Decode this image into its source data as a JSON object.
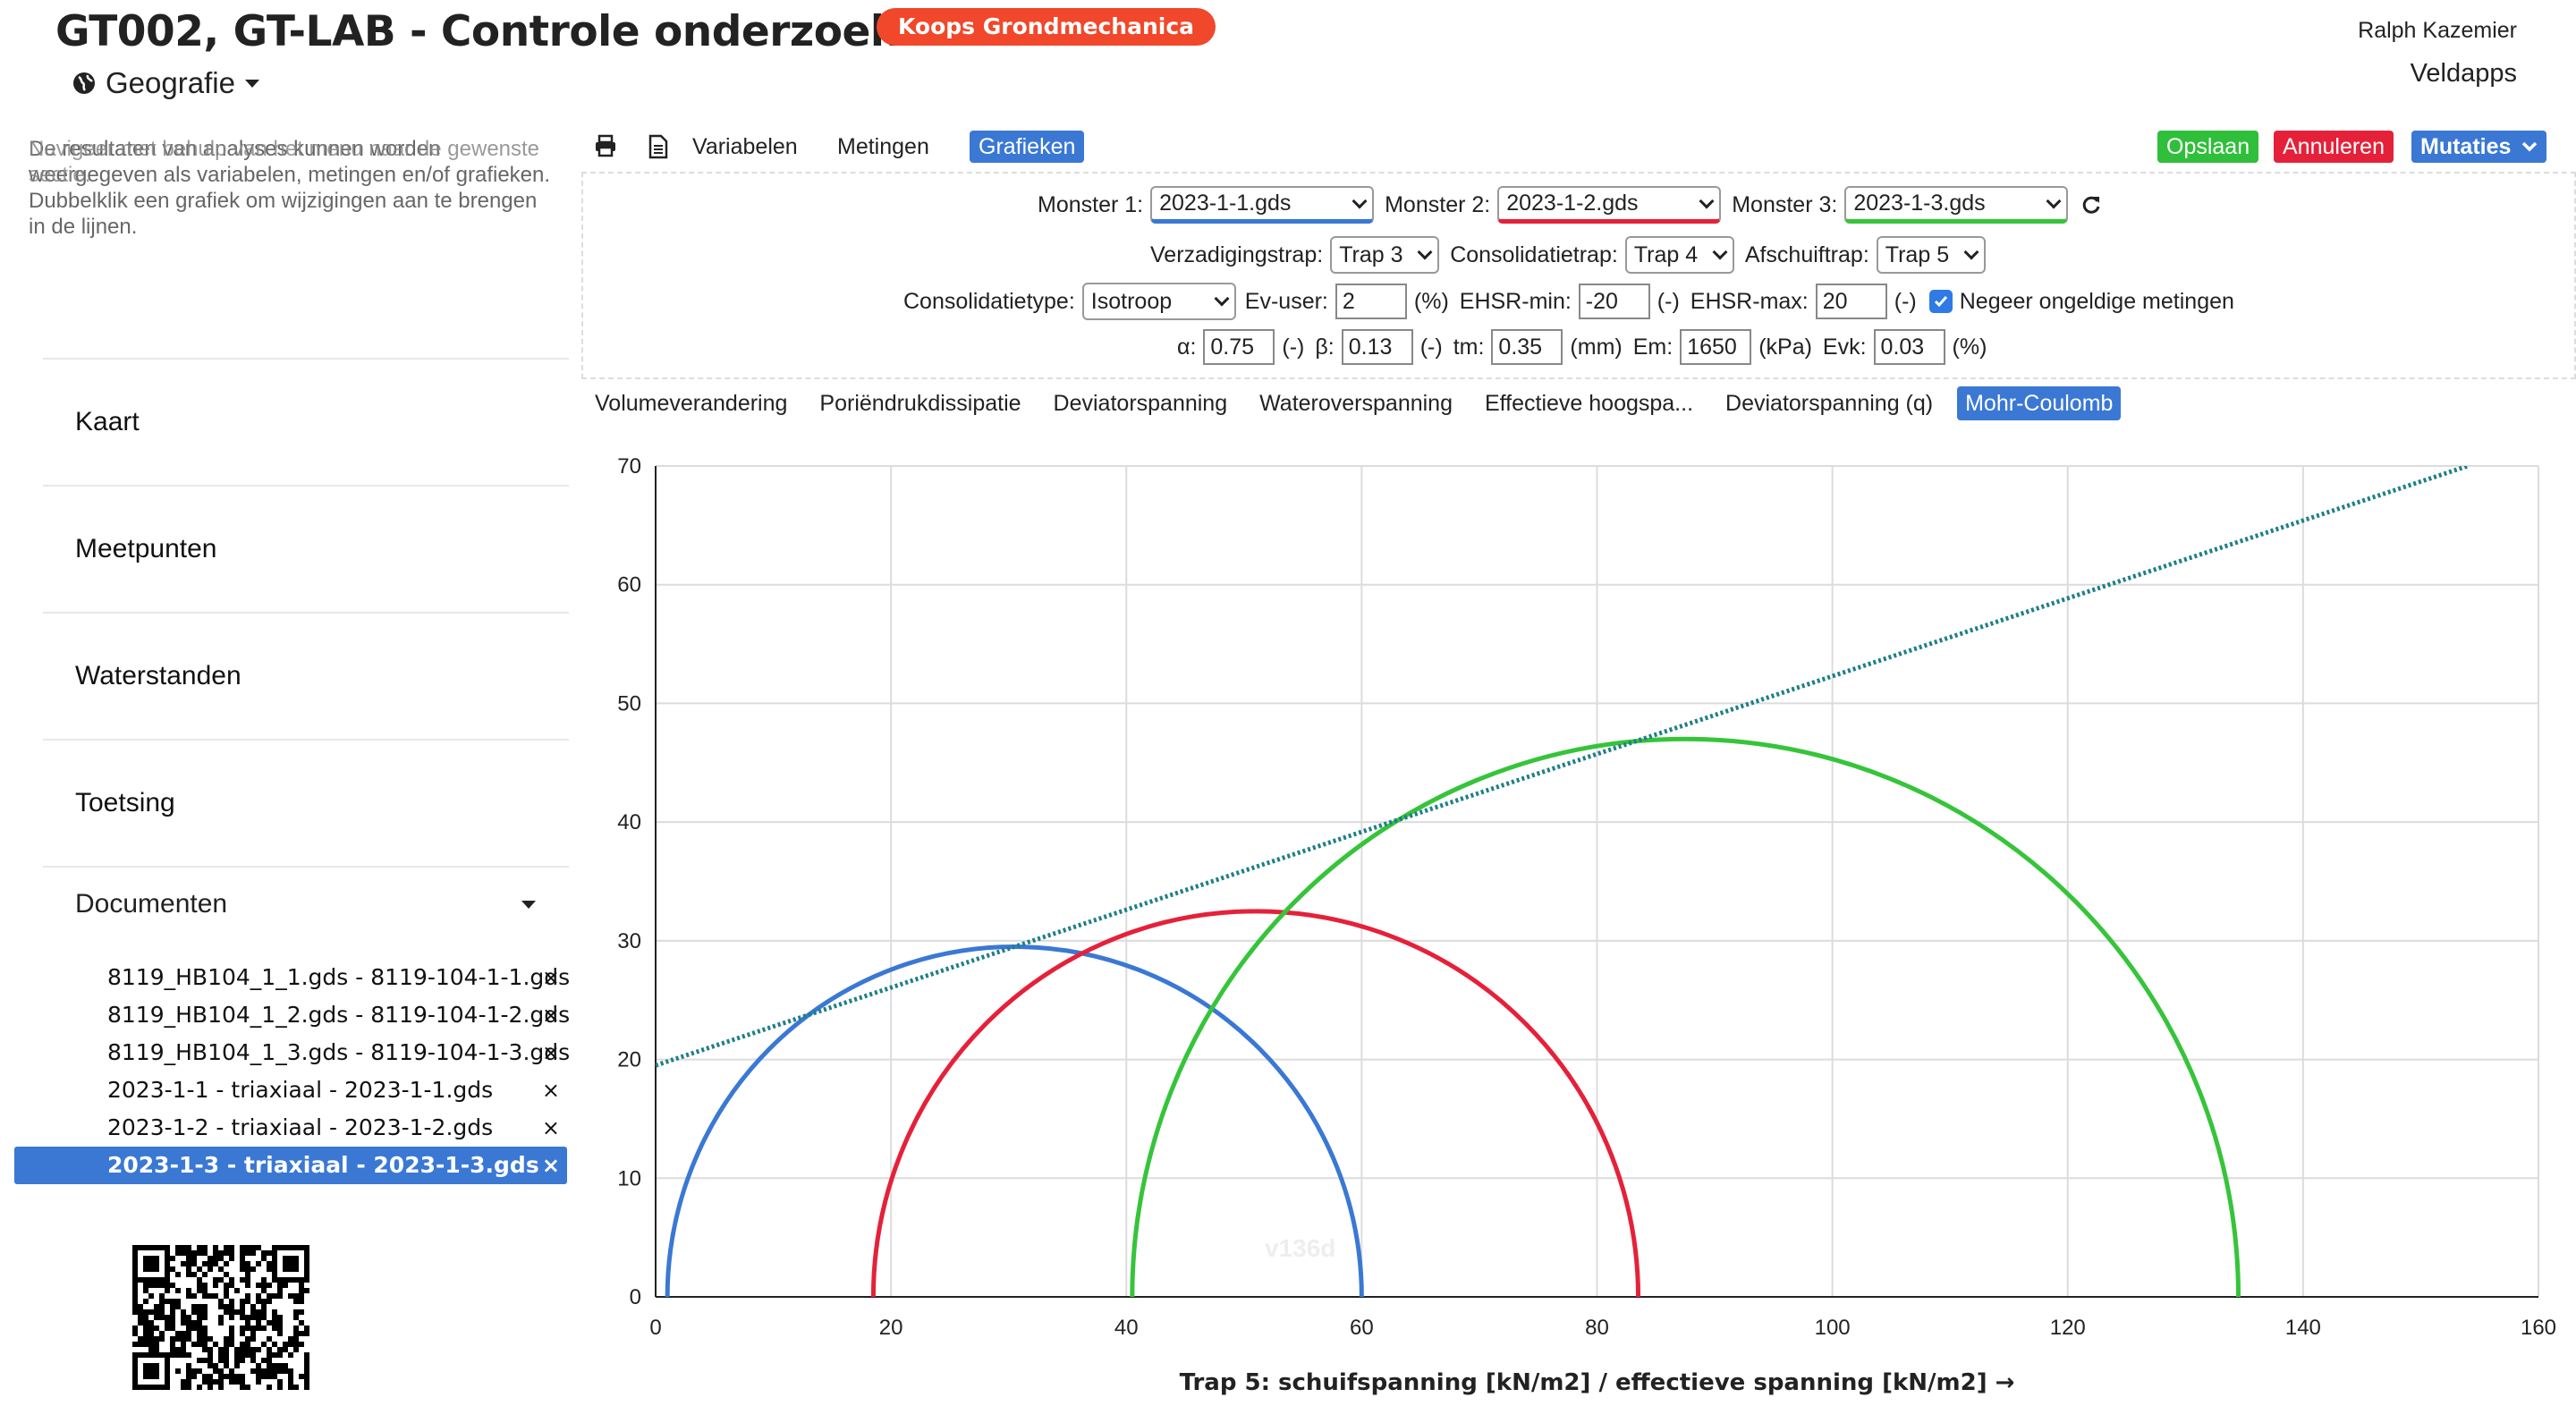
{
  "header": {
    "title": "GT002, GT-LAB - Controle onderzoek",
    "org_badge": "Koops Grondmechanica",
    "geo_menu": "Geografie",
    "user_name": "Ralph Kazemier",
    "apps_link": "Veldapps"
  },
  "sidebar": {
    "help_text": "Navigeer met behulp van het menu naar de gewenste sectie.",
    "help_text_2": "De resultaten van analyses kunnen worden weergegeven als variabelen, metingen en/of grafieken. Dubbelklik een grafiek om wijzigingen aan te brengen in de lijnen.",
    "nav": [
      "Kaart",
      "Meetpunten",
      "Waterstanden",
      "Toetsing"
    ],
    "documents_label": "Documenten",
    "documents": [
      "8119_HB104_1_1.gds - 8119-104-1-1.gds",
      "8119_HB104_1_2.gds - 8119-104-1-2.gds",
      "8119_HB104_1_3.gds - 8119-104-1-3.gds",
      "2023-1-1 - triaxiaal - 2023-1-1.gds",
      "2023-1-2 - triaxiaal - 2023-1-2.gds",
      "2023-1-3 - triaxiaal - 2023-1-3.gds"
    ],
    "active_document_index": 5,
    "remove_glyph": "×"
  },
  "toolbar": {
    "tabs": [
      "Variabelen",
      "Metingen",
      "Grafieken"
    ],
    "active_tab": "Grafieken",
    "save_label": "Opslaan",
    "cancel_label": "Annuleren",
    "mutations_label": "Mutaties",
    "colors": {
      "save": "#2fbf3a",
      "cancel": "#e5213a",
      "mutations": "#3a78d4",
      "active_tab": "#3a78d4"
    }
  },
  "params": {
    "monster1_label": "Monster 1:",
    "monster1_value": "2023-1-1.gds",
    "monster2_label": "Monster 2:",
    "monster2_value": "2023-1-2.gds",
    "monster3_label": "Monster 3:",
    "monster3_value": "2023-1-3.gds",
    "verzadiging_label": "Verzadigingstrap:",
    "verzadiging_value": "Trap 3",
    "consolidatie_label": "Consolidatietrap:",
    "consolidatie_value": "Trap 4",
    "afschuif_label": "Afschuiftrap:",
    "afschuif_value": "Trap 5",
    "consolidatietype_label": "Consolidatietype:",
    "consolidatietype_value": "Isotroop",
    "ev_user_label": "Ev-user:",
    "ev_user_value": "2",
    "ev_user_unit": "(%)",
    "ehsr_min_label": "EHSR-min:",
    "ehsr_min_value": "-20",
    "ehsr_min_unit": "(-)",
    "ehsr_max_label": "EHSR-max:",
    "ehsr_max_value": "20",
    "ehsr_max_unit": "(-)",
    "ignore_label": "Negeer ongeldige metingen",
    "ignore_checked": true,
    "alpha_label": "α:",
    "alpha_value": "0.75",
    "alpha_unit": "(-)",
    "beta_label": "β:",
    "beta_value": "0.13",
    "beta_unit": "(-)",
    "tm_label": "tm:",
    "tm_value": "0.35",
    "tm_unit": "(mm)",
    "em_label": "Em:",
    "em_value": "1650",
    "em_unit": "(kPa)",
    "evk_label": "Evk:",
    "evk_value": "0.03",
    "evk_unit": "(%)"
  },
  "chart_tabs": [
    "Volumeverandering",
    "Poriëndrukdissipatie",
    "Deviatorspanning",
    "Wateroverspanning",
    "Effectieve hoogspa...",
    "Deviatorspanning (q)",
    "Mohr-Coulomb"
  ],
  "active_chart_tab": "Mohr-Coulomb",
  "version": "v136d",
  "chart_data": {
    "type": "line",
    "xlabel": "Trap 5: schuifspanning [kN/m2] / effectieve spanning [kN/m2] →",
    "ylabel": "",
    "xlim": [
      0,
      160
    ],
    "ylim": [
      0,
      70
    ],
    "xticks": [
      0,
      20,
      40,
      60,
      80,
      100,
      120,
      140,
      160
    ],
    "yticks": [
      0,
      10,
      20,
      30,
      40,
      50,
      60,
      70
    ],
    "grid": true,
    "series": [
      {
        "kind": "semicircle",
        "center": 30.5,
        "radius": 29.5,
        "color": "#3a78d4"
      },
      {
        "kind": "semicircle",
        "center": 51.0,
        "radius": 32.5,
        "color": "#e5213a"
      },
      {
        "kind": "semicircle",
        "center": 87.5,
        "radius": 47.0,
        "color": "#36c43a"
      },
      {
        "kind": "line",
        "x": [
          0,
          154
        ],
        "y": [
          19.5,
          70
        ],
        "color": "#1e7f86",
        "dashed": true
      }
    ]
  }
}
